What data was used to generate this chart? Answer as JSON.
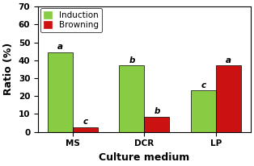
{
  "categories": [
    "MS",
    "DCR",
    "LP"
  ],
  "induction_values": [
    44.5,
    37.0,
    23.0
  ],
  "browning_values": [
    2.5,
    8.5,
    37.0
  ],
  "induction_color": "#88CC44",
  "browning_color": "#CC1111",
  "induction_label": "Induction",
  "browning_label": "Browning",
  "induction_letters": [
    "a",
    "b",
    "c"
  ],
  "browning_letters": [
    "c",
    "b",
    "a"
  ],
  "xlabel": "Culture medium",
  "ylabel": "Ratio (%)",
  "ylim": [
    0,
    70
  ],
  "yticks": [
    0,
    10,
    20,
    30,
    40,
    50,
    60,
    70
  ],
  "bar_width": 0.35,
  "group_positions": [
    0.0,
    1.0,
    2.0
  ]
}
